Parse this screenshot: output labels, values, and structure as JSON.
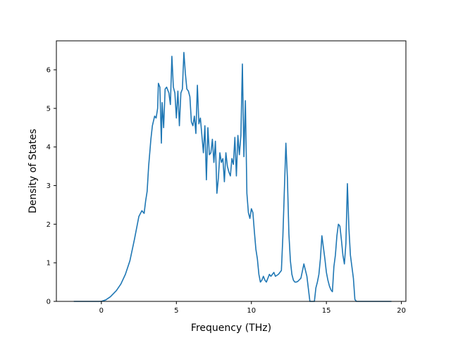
{
  "chart_data": {
    "type": "line",
    "title": "",
    "xlabel": "Frequency (THz)",
    "ylabel": "Density of States",
    "xlim": [
      -3.0,
      20.3
    ],
    "ylim": [
      0,
      6.75
    ],
    "xticks": [
      0,
      5,
      10,
      15,
      20
    ],
    "yticks": [
      0,
      1,
      2,
      3,
      4,
      5,
      6
    ],
    "xtick_labels": [
      "0",
      "5",
      "10",
      "15",
      "20"
    ],
    "ytick_labels": [
      "0",
      "1",
      "2",
      "3",
      "4",
      "5",
      "6"
    ],
    "grid": false,
    "line_color": "#1f77b4",
    "series": [
      {
        "name": "",
        "x": [
          -1.8,
          -0.5,
          0.0,
          0.3,
          0.6,
          1.0,
          1.3,
          1.6,
          1.9,
          2.2,
          2.5,
          2.7,
          2.85,
          2.95,
          3.05,
          3.15,
          3.3,
          3.4,
          3.55,
          3.65,
          3.75,
          3.8,
          3.9,
          4.0,
          4.05,
          4.15,
          4.25,
          4.35,
          4.5,
          4.6,
          4.7,
          4.8,
          4.9,
          5.0,
          5.1,
          5.2,
          5.3,
          5.4,
          5.5,
          5.6,
          5.7,
          5.8,
          5.9,
          6.0,
          6.1,
          6.2,
          6.3,
          6.4,
          6.5,
          6.6,
          6.7,
          6.8,
          6.9,
          7.0,
          7.1,
          7.2,
          7.3,
          7.4,
          7.5,
          7.6,
          7.7,
          7.8,
          7.9,
          8.0,
          8.1,
          8.2,
          8.3,
          8.4,
          8.5,
          8.6,
          8.7,
          8.8,
          8.9,
          9.0,
          9.1,
          9.2,
          9.3,
          9.4,
          9.5,
          9.6,
          9.7,
          9.8,
          9.9,
          10.0,
          10.1,
          10.2,
          10.3,
          10.4,
          10.5,
          10.6,
          10.7,
          10.8,
          10.9,
          11.0,
          11.1,
          11.2,
          11.3,
          11.4,
          11.5,
          11.6,
          11.8,
          12.0,
          12.1,
          12.3,
          12.4,
          12.5,
          12.6,
          12.7,
          12.8,
          12.9,
          13.0,
          13.1,
          13.3,
          13.5,
          13.7,
          13.9,
          14.1,
          14.2,
          14.3,
          14.4,
          14.5,
          14.6,
          14.7,
          14.8,
          14.9,
          15.0,
          15.1,
          15.2,
          15.3,
          15.4,
          15.5,
          15.6,
          15.7,
          15.8,
          15.9,
          16.0,
          16.1,
          16.2,
          16.3,
          16.4,
          16.5,
          16.6,
          16.7,
          16.8,
          16.9,
          17.0,
          17.1,
          17.2,
          17.3,
          17.4,
          17.5,
          17.6,
          17.8,
          18.5,
          19.3
        ],
        "y": [
          0.0,
          0.0,
          0.0,
          0.04,
          0.12,
          0.28,
          0.45,
          0.7,
          1.05,
          1.6,
          2.2,
          2.35,
          2.28,
          2.6,
          2.85,
          3.5,
          4.2,
          4.55,
          4.8,
          4.75,
          5.0,
          5.65,
          5.55,
          4.1,
          5.15,
          4.5,
          5.5,
          5.55,
          5.4,
          5.1,
          6.35,
          5.55,
          5.4,
          4.75,
          5.45,
          4.55,
          5.4,
          5.5,
          6.45,
          5.9,
          5.5,
          5.45,
          5.3,
          4.65,
          4.55,
          4.8,
          4.35,
          5.6,
          4.6,
          4.75,
          4.3,
          3.85,
          4.55,
          3.15,
          4.5,
          3.8,
          3.85,
          4.2,
          3.6,
          4.15,
          2.8,
          3.2,
          3.85,
          3.6,
          3.7,
          3.1,
          3.85,
          3.5,
          3.35,
          3.25,
          3.7,
          3.55,
          4.25,
          3.25,
          4.3,
          3.8,
          4.3,
          6.15,
          3.75,
          5.2,
          2.8,
          2.3,
          2.15,
          2.4,
          2.3,
          1.8,
          1.35,
          1.1,
          0.7,
          0.5,
          0.55,
          0.65,
          0.55,
          0.5,
          0.6,
          0.7,
          0.65,
          0.7,
          0.75,
          0.65,
          0.7,
          0.8,
          1.7,
          4.1,
          3.2,
          1.75,
          1.05,
          0.7,
          0.55,
          0.5,
          0.5,
          0.52,
          0.6,
          0.97,
          0.65,
          0.0,
          0.0,
          0.0,
          0.35,
          0.5,
          0.7,
          1.1,
          1.7,
          1.4,
          1.1,
          0.75,
          0.55,
          0.4,
          0.3,
          0.25,
          0.9,
          1.2,
          1.7,
          2.0,
          1.95,
          1.6,
          1.2,
          0.97,
          1.5,
          3.05,
          1.9,
          1.2,
          0.9,
          0.6,
          0.05,
          0.0,
          0.0,
          0.0,
          0.0,
          0.0,
          0.0,
          0.0,
          0.0,
          0.0,
          0.0
        ]
      }
    ]
  }
}
